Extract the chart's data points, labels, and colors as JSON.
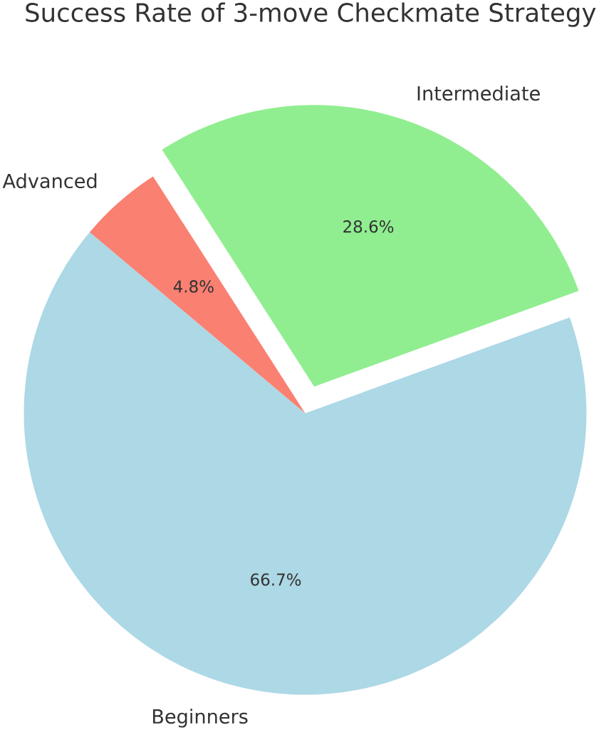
{
  "chart_data": {
    "type": "pie",
    "title": "Success Rate of 3-move Checkmate Strategy",
    "categories": [
      "Beginners",
      "Intermediate",
      "Advanced"
    ],
    "values": [
      66.7,
      28.6,
      4.8
    ],
    "value_labels": [
      "66.7%",
      "28.6%",
      "4.8%"
    ],
    "colors": [
      "#add8e6",
      "#90ee90",
      "#fa8072"
    ]
  }
}
